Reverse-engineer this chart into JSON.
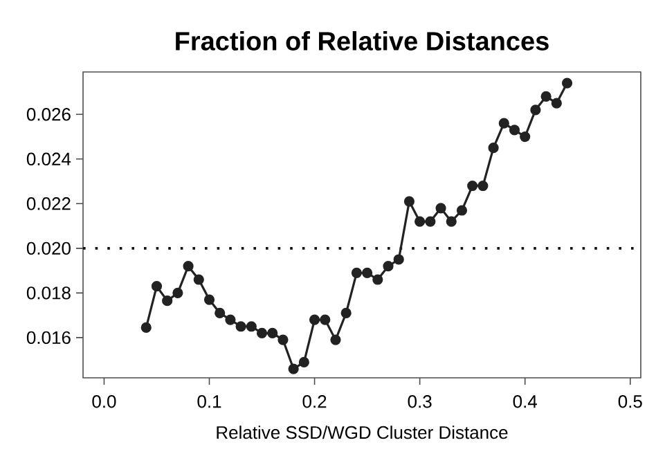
{
  "chart_data": {
    "type": "line",
    "title": "Fraction of Relative Distances",
    "xlabel": "Relative SSD/WGD Cluster Distance",
    "x": [
      0.04,
      0.05,
      0.06,
      0.07,
      0.08,
      0.09,
      0.1,
      0.11,
      0.12,
      0.13,
      0.14,
      0.15,
      0.16,
      0.17,
      0.18,
      0.19,
      0.2,
      0.21,
      0.22,
      0.23,
      0.24,
      0.25,
      0.26,
      0.27,
      0.28,
      0.29,
      0.3,
      0.31,
      0.32,
      0.33,
      0.34,
      0.35,
      0.36,
      0.37,
      0.38,
      0.39,
      0.4,
      0.41,
      0.42,
      0.43,
      0.44
    ],
    "series": [
      {
        "color": "#222222",
        "values": [
          0.01645,
          0.0183,
          0.01765,
          0.018,
          0.0192,
          0.0186,
          0.0177,
          0.0171,
          0.0168,
          0.0165,
          0.0165,
          0.0162,
          0.0162,
          0.0159,
          0.0146,
          0.0149,
          0.0168,
          0.0168,
          0.0159,
          0.0171,
          0.0189,
          0.0189,
          0.0186,
          0.0192,
          0.0195,
          0.0221,
          0.0212,
          0.0212,
          0.0218,
          0.0212,
          0.0217,
          0.0228,
          0.0228,
          0.0245,
          0.0256,
          0.0253,
          0.025,
          0.0262,
          0.0268,
          0.0265,
          0.0274
        ]
      }
    ],
    "xlim": [
      -0.02,
      0.51
    ],
    "ylim": [
      0.0142,
      0.0279
    ],
    "xticks": [
      {
        "value": 0,
        "label": "0.0"
      },
      0.1,
      0.2,
      0.3,
      0.4,
      0.5
    ],
    "yticks": [
      0.016,
      0.018,
      {
        "value": 0.02,
        "label": "0.020"
      },
      0.022,
      0.024,
      0.026
    ],
    "ref_lines": [
      {
        "axis": "y",
        "value": 0.02,
        "color": "#111111",
        "line_style": "dotted"
      }
    ],
    "marker": "circle",
    "line_style": "solid"
  }
}
